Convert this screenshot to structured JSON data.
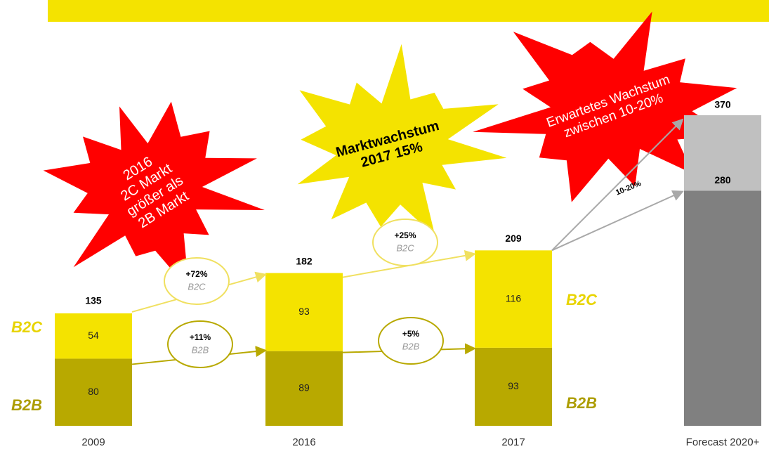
{
  "chart_data": {
    "type": "bar",
    "categories": [
      "2009",
      "2016",
      "2017",
      "Forecast 2020+"
    ],
    "series": [
      {
        "name": "B2B",
        "color": "#b8a900",
        "values": [
          80,
          89,
          93,
          null
        ]
      },
      {
        "name": "B2C",
        "color": "#f4e300",
        "values": [
          54,
          93,
          116,
          null
        ]
      }
    ],
    "totals": [
      135,
      182,
      209,
      null
    ],
    "forecast": {
      "low": 280,
      "high": 370,
      "colors": [
        "#808080",
        "#c0c0c0"
      ],
      "label": "10-20%"
    },
    "ylim": [
      0,
      370
    ],
    "growth": [
      {
        "label": "+72%",
        "series": "B2C"
      },
      {
        "label": "+11%",
        "series": "B2B"
      },
      {
        "label": "+25%",
        "series": "B2C"
      },
      {
        "label": "+5%",
        "series": "B2B"
      }
    ],
    "annotations": [
      {
        "lines": [
          "2016",
          "2C Markt",
          "größer als",
          "2B Markt"
        ],
        "color": "#ff0000"
      },
      {
        "lines": [
          "Marktwachstum",
          "2017 15%"
        ],
        "color": "#f4e300"
      },
      {
        "lines": [
          "Erwartetes Wachstum",
          "zwischen 10-20%"
        ],
        "color": "#ff0000"
      }
    ]
  }
}
